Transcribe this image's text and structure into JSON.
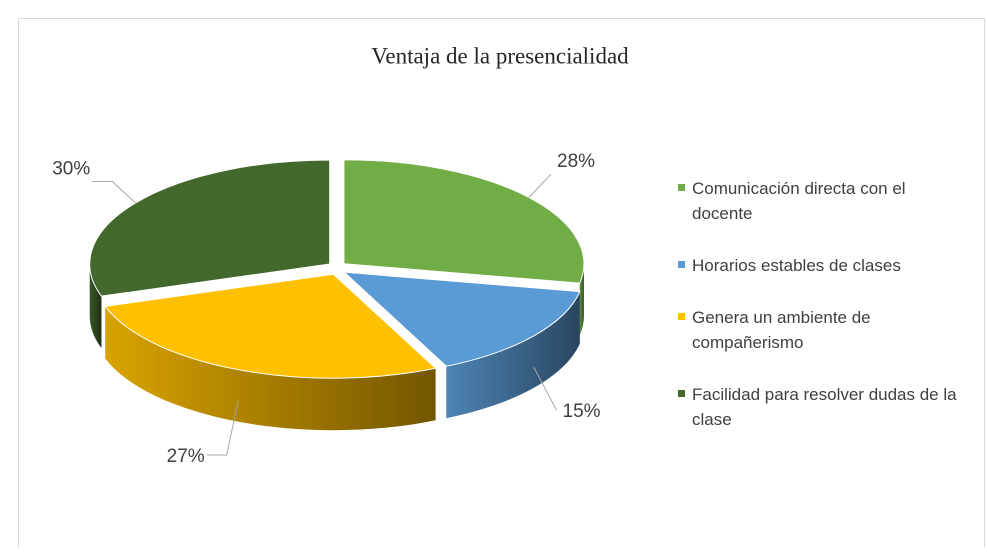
{
  "chart_data": {
    "type": "pie",
    "title": "Ventaja de la presencialidad",
    "categories": [
      "Comunicación directa con el docente",
      "Horarios estables de clases",
      "Genera un ambiente de compañerismo",
      "Facilidad para resolver dudas de la clase"
    ],
    "values": [
      28,
      15,
      27,
      30
    ],
    "value_labels": [
      "28%",
      "15%",
      "27%",
      "30%"
    ],
    "colors": [
      "#70ad47",
      "#5b9bd5",
      "#ffc000",
      "#43682b"
    ],
    "legend": "right"
  }
}
